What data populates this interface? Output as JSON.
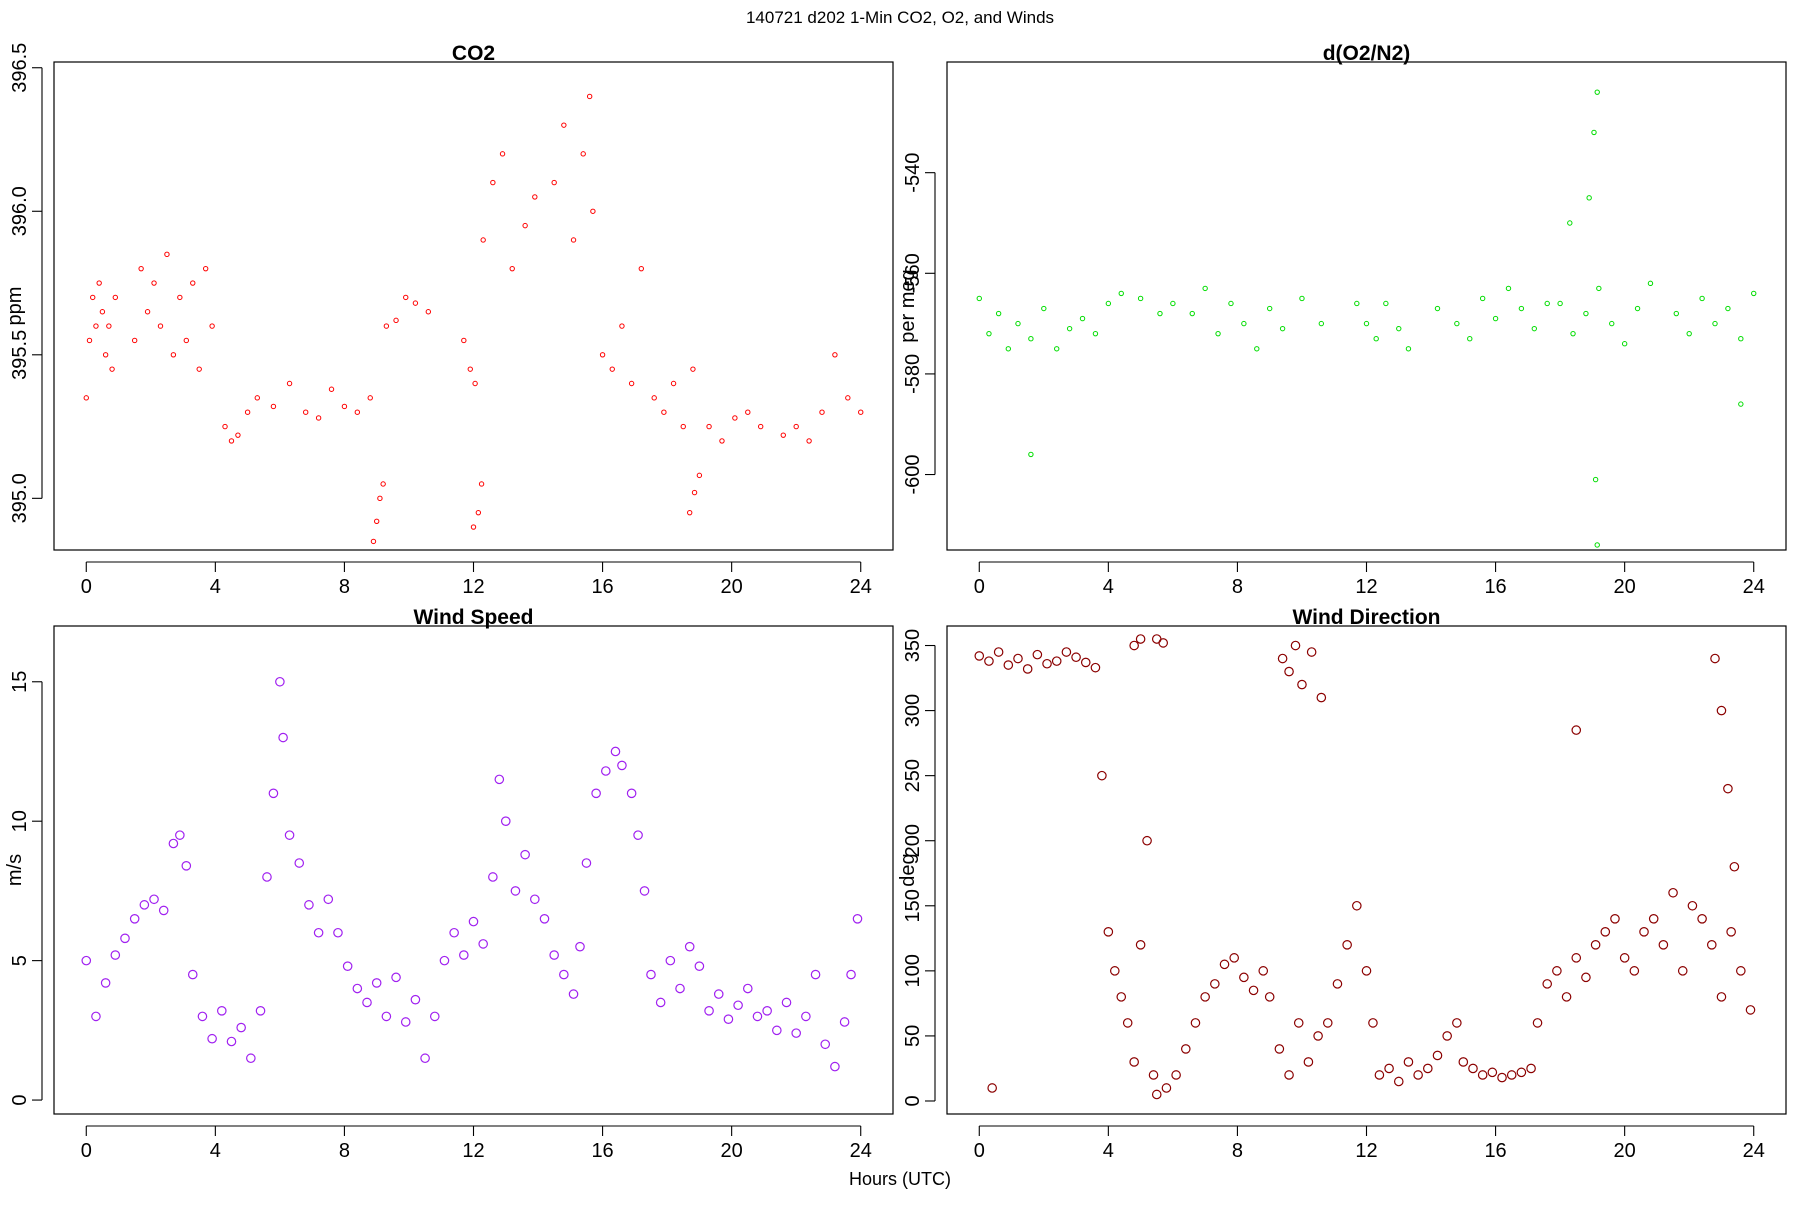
{
  "figure": {
    "suptitle": "140721   d202   1-Min CO2, O2, and Winds",
    "xlabel": "Hours (UTC)"
  },
  "chart_data": [
    {
      "id": "co2",
      "type": "scatter",
      "title": "CO2",
      "xlabel": "",
      "ylabel": "ppm",
      "xlim": [
        -1,
        25
      ],
      "ylim": [
        394.82,
        396.52
      ],
      "xticks": [
        0,
        4,
        8,
        12,
        16,
        20,
        24
      ],
      "yticks": [
        395.0,
        395.5,
        396.0,
        396.5
      ],
      "ytick_labels": [
        "395.0",
        "395.5",
        "396.0",
        "396.5"
      ],
      "marker_color": "#ff0000",
      "marker": "open-circle-small",
      "grid": false,
      "segments": [
        {
          "x": [
            0.0,
            0.1,
            0.2,
            0.3,
            0.4,
            0.5,
            0.6,
            0.7,
            0.8,
            0.9
          ],
          "y": [
            395.35,
            395.55,
            395.7,
            395.6,
            395.75,
            395.65,
            395.5,
            395.6,
            395.45,
            395.7
          ]
        },
        {
          "x": [
            1.5,
            1.7,
            1.9,
            2.1,
            2.3,
            2.5,
            2.7,
            2.9,
            3.1,
            3.3,
            3.5,
            3.7,
            3.9
          ],
          "y": [
            395.55,
            395.8,
            395.65,
            395.75,
            395.6,
            395.85,
            395.5,
            395.7,
            395.55,
            395.75,
            395.45,
            395.8,
            395.6
          ]
        },
        {
          "x": [
            4.3,
            4.5,
            4.7,
            5.0,
            5.3
          ],
          "y": [
            395.25,
            395.2,
            395.22,
            395.3,
            395.35
          ]
        },
        {
          "x": [
            5.8,
            6.3,
            6.8,
            7.2,
            7.6,
            8.0,
            8.4,
            8.8
          ],
          "y": [
            395.32,
            395.4,
            395.3,
            395.28,
            395.38,
            395.32,
            395.3,
            395.35
          ]
        },
        {
          "x": [
            8.9,
            9.0,
            9.1,
            9.2
          ],
          "y": [
            394.85,
            394.92,
            395.0,
            395.05
          ]
        },
        {
          "x": [
            9.3,
            9.6,
            9.9,
            10.2,
            10.6
          ],
          "y": [
            395.6,
            395.62,
            395.7,
            395.68,
            395.65
          ]
        },
        {
          "x": [
            11.7,
            11.9,
            12.05
          ],
          "y": [
            395.55,
            395.45,
            395.4
          ]
        },
        {
          "x": [
            12.0,
            12.15,
            12.25
          ],
          "y": [
            394.9,
            394.95,
            395.05
          ]
        },
        {
          "x": [
            12.3,
            12.6,
            12.9,
            13.2,
            13.6,
            13.9
          ],
          "y": [
            395.9,
            396.1,
            396.2,
            395.8,
            395.95,
            396.05
          ]
        },
        {
          "x": [
            14.5,
            14.8,
            15.1,
            15.4,
            15.6,
            15.7
          ],
          "y": [
            396.1,
            396.3,
            395.9,
            396.2,
            396.4,
            396.0
          ]
        },
        {
          "x": [
            16.0,
            16.3,
            16.6,
            16.9,
            17.2
          ],
          "y": [
            395.5,
            395.45,
            395.6,
            395.4,
            395.8
          ]
        },
        {
          "x": [
            17.6,
            17.9,
            18.2,
            18.5,
            18.8
          ],
          "y": [
            395.35,
            395.3,
            395.4,
            395.25,
            395.45
          ]
        },
        {
          "x": [
            18.7,
            18.85,
            19.0
          ],
          "y": [
            394.95,
            395.02,
            395.08
          ]
        },
        {
          "x": [
            19.3,
            19.7,
            20.1,
            20.5,
            20.9
          ],
          "y": [
            395.25,
            395.2,
            395.28,
            395.3,
            395.25
          ]
        },
        {
          "x": [
            21.6,
            22.0,
            22.4,
            22.8,
            23.2,
            23.6,
            24.0
          ],
          "y": [
            395.22,
            395.25,
            395.2,
            395.3,
            395.5,
            395.35,
            395.3
          ]
        }
      ]
    },
    {
      "id": "o2",
      "type": "scatter",
      "title": "d(O2/N2)",
      "xlabel": "",
      "ylabel": "per meg",
      "xlim": [
        -1,
        25
      ],
      "ylim": [
        -615,
        -518
      ],
      "xticks": [
        0,
        4,
        8,
        12,
        16,
        20,
        24
      ],
      "yticks": [
        -600,
        -580,
        -560,
        -540
      ],
      "ytick_labels": [
        "-600",
        "-580",
        "-560",
        "-540"
      ],
      "marker_color": "#00dd00",
      "marker": "open-circle-small",
      "grid": false,
      "segments": [
        {
          "x": [
            0.0,
            0.3,
            0.6,
            0.9,
            1.2,
            1.6,
            2.0,
            2.4,
            2.8,
            3.2,
            3.6,
            4.0,
            4.4
          ],
          "y": [
            -565,
            -572,
            -568,
            -575,
            -570,
            -573,
            -567,
            -575,
            -571,
            -569,
            -572,
            -566,
            -564
          ]
        },
        {
          "x": [
            1.6
          ],
          "y": [
            -596
          ]
        },
        {
          "x": [
            5.0,
            5.6,
            6.0
          ],
          "y": [
            -565,
            -568,
            -566
          ]
        },
        {
          "x": [
            6.6,
            7.0,
            7.4,
            7.8,
            8.2,
            8.6,
            9.0,
            9.4,
            10.0,
            10.6
          ],
          "y": [
            -568,
            -563,
            -572,
            -566,
            -570,
            -575,
            -567,
            -571,
            -565,
            -570
          ]
        },
        {
          "x": [
            11.7,
            12.0,
            12.3,
            12.6,
            13.0,
            13.3
          ],
          "y": [
            -566,
            -570,
            -573,
            -566,
            -571,
            -575
          ]
        },
        {
          "x": [
            14.2,
            14.8,
            15.2,
            15.6,
            16.0,
            16.4,
            16.8,
            17.2,
            17.6
          ],
          "y": [
            -567,
            -570,
            -573,
            -565,
            -569,
            -563,
            -567,
            -571,
            -566
          ]
        },
        {
          "x": [
            18.0,
            18.4,
            18.8,
            19.2,
            19.6,
            20.0,
            20.4,
            20.8
          ],
          "y": [
            -566,
            -572,
            -568,
            -563,
            -570,
            -574,
            -567,
            -562
          ]
        },
        {
          "x": [
            18.3,
            18.9
          ],
          "y": [
            -550,
            -545
          ]
        },
        {
          "x": [
            19.15
          ],
          "y": [
            -524
          ]
        },
        {
          "x": [
            19.05
          ],
          "y": [
            -532
          ]
        },
        {
          "x": [
            19.1
          ],
          "y": [
            -601
          ]
        },
        {
          "x": [
            19.15
          ],
          "y": [
            -614
          ]
        },
        {
          "x": [
            21.6,
            22.0,
            22.4,
            22.8,
            23.2,
            23.6,
            24.0
          ],
          "y": [
            -568,
            -572,
            -565,
            -570,
            -567,
            -573,
            -564
          ]
        },
        {
          "x": [
            23.6
          ],
          "y": [
            -586
          ]
        }
      ]
    },
    {
      "id": "wspd",
      "type": "scatter",
      "title": "Wind Speed",
      "xlabel": "",
      "ylabel": "m/s",
      "xlim": [
        -1,
        25
      ],
      "ylim": [
        -0.5,
        17.0
      ],
      "xticks": [
        0,
        4,
        8,
        12,
        16,
        20,
        24
      ],
      "yticks": [
        0,
        5,
        10,
        15
      ],
      "ytick_labels": [
        "0",
        "5",
        "10",
        "15"
      ],
      "marker_color": "#a020f0",
      "marker": "open-circle",
      "grid": false,
      "segments": [
        {
          "x": [
            0.0,
            0.3,
            0.6,
            0.9,
            1.2,
            1.5,
            1.8,
            2.1,
            2.4,
            2.7,
            2.9,
            3.1
          ],
          "y": [
            5.0,
            3.0,
            4.2,
            5.2,
            5.8,
            6.5,
            7.0,
            7.2,
            6.8,
            9.2,
            9.5,
            8.4
          ]
        },
        {
          "x": [
            3.3,
            3.6,
            3.9,
            4.2,
            4.5,
            4.8,
            5.1,
            5.4
          ],
          "y": [
            4.5,
            3.0,
            2.2,
            3.2,
            2.1,
            2.6,
            1.5,
            3.2
          ]
        },
        {
          "x": [
            5.6,
            5.8,
            6.0,
            6.1,
            6.3,
            6.6,
            6.9,
            7.2,
            7.5
          ],
          "y": [
            8.0,
            11.0,
            15.0,
            13.0,
            9.5,
            8.5,
            7.0,
            6.0,
            7.2
          ]
        },
        {
          "x": [
            7.8,
            8.1,
            8.4,
            8.7,
            9.0,
            9.3,
            9.6,
            9.9,
            10.2,
            10.5,
            10.8
          ],
          "y": [
            6.0,
            4.8,
            4.0,
            3.5,
            4.2,
            3.0,
            4.4,
            2.8,
            3.6,
            1.5,
            3.0
          ]
        },
        {
          "x": [
            11.1,
            11.4,
            11.7,
            12.0,
            12.3,
            12.6,
            12.8,
            13.0,
            13.3,
            13.6,
            13.9,
            14.2
          ],
          "y": [
            5.0,
            6.0,
            5.2,
            6.4,
            5.6,
            8.0,
            11.5,
            10.0,
            7.5,
            8.8,
            7.2,
            6.5
          ]
        },
        {
          "x": [
            14.5,
            14.8,
            15.1,
            15.3,
            15.5,
            15.8,
            16.1,
            16.4,
            16.6,
            16.9,
            17.1,
            17.3
          ],
          "y": [
            5.2,
            4.5,
            3.8,
            5.5,
            8.5,
            11.0,
            11.8,
            12.5,
            12.0,
            11.0,
            9.5,
            7.5
          ]
        },
        {
          "x": [
            17.5,
            17.8,
            18.1,
            18.4,
            18.7,
            19.0,
            19.3,
            19.6,
            19.9,
            20.2,
            20.5,
            20.8
          ],
          "y": [
            4.5,
            3.5,
            5.0,
            4.0,
            5.5,
            4.8,
            3.2,
            3.8,
            2.9,
            3.4,
            4.0,
            3.0
          ]
        },
        {
          "x": [
            21.1,
            21.4,
            21.7,
            22.0,
            22.3,
            22.6,
            22.9,
            23.2,
            23.5,
            23.7,
            23.9
          ],
          "y": [
            3.2,
            2.5,
            3.5,
            2.4,
            3.0,
            4.5,
            2.0,
            1.2,
            2.8,
            4.5,
            6.5
          ]
        }
      ]
    },
    {
      "id": "wdir",
      "type": "scatter",
      "title": "Wind Direction",
      "xlabel": "",
      "ylabel": "deg",
      "xlim": [
        -1,
        25
      ],
      "ylim": [
        -10,
        365
      ],
      "xticks": [
        0,
        4,
        8,
        12,
        16,
        20,
        24
      ],
      "yticks": [
        0,
        50,
        100,
        150,
        200,
        250,
        300,
        350
      ],
      "ytick_labels": [
        "0",
        "50",
        "100",
        "150",
        "200",
        "250",
        "300",
        "350"
      ],
      "marker_color": "#8b0000",
      "marker": "open-circle",
      "grid": false,
      "segments": [
        {
          "x": [
            0.0,
            0.3,
            0.6,
            0.9,
            1.2,
            1.5,
            1.8,
            2.1,
            2.4,
            2.7,
            3.0,
            3.3,
            3.6
          ],
          "y": [
            342,
            338,
            345,
            335,
            340,
            332,
            343,
            336,
            338,
            345,
            341,
            337,
            333
          ]
        },
        {
          "x": [
            0.4
          ],
          "y": [
            10
          ]
        },
        {
          "x": [
            3.8,
            4.0,
            4.2,
            4.4,
            4.6,
            4.8,
            5.0,
            5.2,
            5.4
          ],
          "y": [
            250,
            130,
            100,
            80,
            60,
            30,
            120,
            200,
            20
          ]
        },
        {
          "x": [
            4.8,
            5.0,
            5.5,
            5.7
          ],
          "y": [
            350,
            355,
            355,
            352
          ]
        },
        {
          "x": [
            5.5,
            5.8,
            6.1,
            6.4,
            6.7,
            7.0,
            7.3,
            7.6,
            7.9,
            8.2,
            8.5,
            8.8
          ],
          "y": [
            5,
            10,
            20,
            40,
            60,
            80,
            90,
            105,
            110,
            95,
            85,
            100
          ]
        },
        {
          "x": [
            9.0,
            9.3,
            9.6,
            9.9,
            10.2,
            10.5
          ],
          "y": [
            80,
            40,
            20,
            60,
            30,
            50
          ]
        },
        {
          "x": [
            9.4,
            9.6,
            9.8,
            10.0,
            10.3,
            10.6
          ],
          "y": [
            340,
            330,
            350,
            320,
            345,
            310
          ]
        },
        {
          "x": [
            10.8,
            11.1,
            11.4,
            11.7,
            12.0,
            12.2
          ],
          "y": [
            60,
            90,
            120,
            150,
            100,
            60
          ]
        },
        {
          "x": [
            12.4,
            12.7,
            13.0,
            13.3,
            13.6,
            13.9,
            14.2,
            14.5,
            14.8
          ],
          "y": [
            20,
            25,
            15,
            30,
            20,
            25,
            35,
            50,
            60
          ]
        },
        {
          "x": [
            15.0,
            15.3,
            15.6,
            15.9,
            16.2,
            16.5,
            16.8,
            17.1
          ],
          "y": [
            30,
            25,
            20,
            22,
            18,
            20,
            22,
            25
          ]
        },
        {
          "x": [
            17.3,
            17.6,
            17.9,
            18.2,
            18.5,
            18.8,
            19.1,
            19.4,
            19.7,
            20.0,
            20.3,
            20.6
          ],
          "y": [
            60,
            90,
            100,
            80,
            110,
            95,
            120,
            130,
            140,
            110,
            100,
            130
          ]
        },
        {
          "x": [
            18.5
          ],
          "y": [
            285
          ]
        },
        {
          "x": [
            20.9,
            21.2,
            21.5,
            21.8,
            22.1,
            22.4,
            22.7,
            23.0,
            23.3,
            23.6,
            23.9
          ],
          "y": [
            140,
            120,
            160,
            100,
            150,
            140,
            120,
            80,
            130,
            100,
            70
          ]
        },
        {
          "x": [
            22.8,
            23.0,
            23.2,
            23.4
          ],
          "y": [
            340,
            300,
            240,
            180
          ]
        }
      ]
    }
  ]
}
